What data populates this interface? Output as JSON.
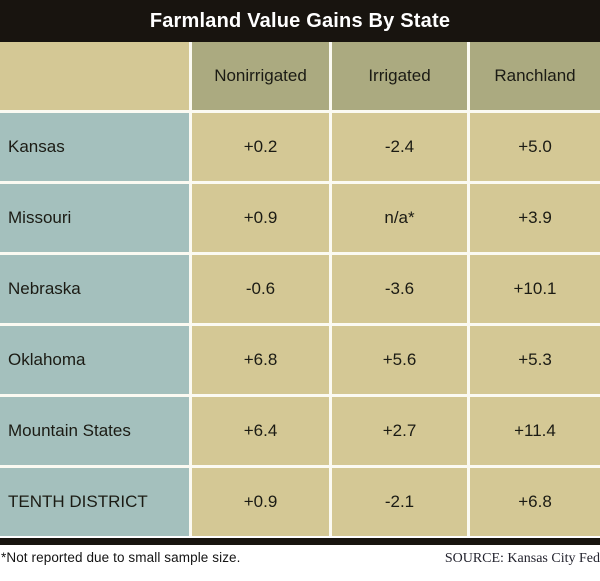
{
  "title": "Farmland Value Gains By State",
  "chart_data": {
    "type": "table",
    "title": "Farmland Value Gains By State",
    "columns": [
      "Nonirrigated",
      "Irrigated",
      "Ranchland"
    ],
    "rows": [
      {
        "label": "Kansas",
        "values": [
          "+0.2",
          "-2.4",
          "+5.0"
        ]
      },
      {
        "label": "Missouri",
        "values": [
          "+0.9",
          "n/a*",
          "+3.9"
        ]
      },
      {
        "label": "Nebraska",
        "values": [
          "-0.6",
          "-3.6",
          "+10.1"
        ]
      },
      {
        "label": "Oklahoma",
        "values": [
          "+6.8",
          "+5.6",
          "+5.3"
        ]
      },
      {
        "label": "Mountain States",
        "values": [
          "+6.4",
          "+2.7",
          "+11.4"
        ]
      },
      {
        "label": "TENTH DISTRICT",
        "values": [
          "+0.9",
          "-2.1",
          "+6.8"
        ]
      }
    ],
    "footnote": "*Not reported due to small sample size.",
    "source": "SOURCE: Kansas City Fed"
  },
  "colors": {
    "title_bar": "#18140f",
    "header_cell": "#abaa80",
    "label_cell": "#a4c0bd",
    "data_cell": "#d4c895",
    "grid_gap": "#fbfaf2"
  }
}
